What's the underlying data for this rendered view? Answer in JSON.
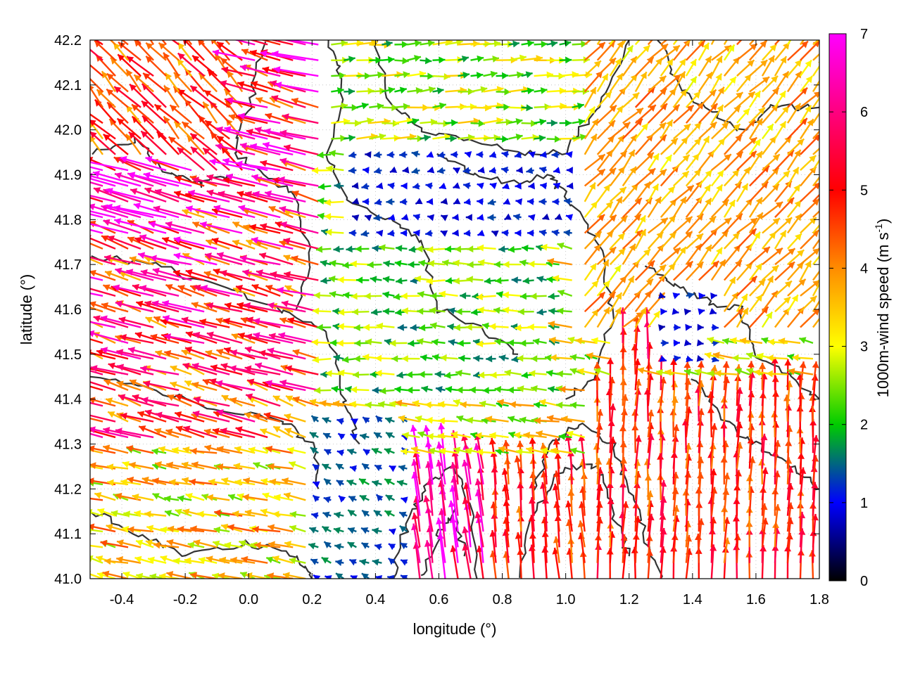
{
  "chart_data": {
    "type": "quiver",
    "xlabel": "longitude (°)",
    "ylabel": "latitude (°)",
    "xlim": [
      -0.5,
      1.8
    ],
    "ylim": [
      41.0,
      42.2
    ],
    "x_ticks": [
      "-0.4",
      "-0.2",
      "0.0",
      "0.2",
      "0.4",
      "0.6",
      "0.8",
      "1.0",
      "1.2",
      "1.4",
      "1.6",
      "1.8"
    ],
    "y_ticks": [
      "41.0",
      "41.1",
      "41.2",
      "41.3",
      "41.4",
      "41.5",
      "41.6",
      "41.7",
      "41.8",
      "41.9",
      "42.0",
      "42.1",
      "42.2"
    ],
    "grid": "dotted",
    "colorbar": {
      "label_prefix": "1000m-wind speed (m s",
      "label_exp": "-1",
      "label_suffix": ")",
      "range": [
        0,
        7
      ],
      "ticks": [
        "0",
        "1",
        "2",
        "3",
        "4",
        "5",
        "6",
        "7"
      ],
      "colors": [
        "#000000",
        "#0000ff",
        "#00cc00",
        "#ffff00",
        "#ff8c00",
        "#ff0000",
        "#ff00ff"
      ]
    },
    "overlay": "terrain contour lines (dark gray)",
    "arrow_regions": [
      {
        "area": "west lowlands (lon -0.5 to 0.2, lat 41.3 to 41.9)",
        "direction": "from east-southeast",
        "speed": 5
      },
      {
        "area": "northwest (lon -0.5 to 0.0, lat 41.9 to 42.2)",
        "direction": "from south-east",
        "speed": 4.5
      },
      {
        "area": "far northwest high winds (lon -0.45 to -0.2, lat 41.7 to 41.9)",
        "direction": "from east-southeast",
        "speed": 6.5
      },
      {
        "area": "southwest (lon -0.5 to 0.2, lat 41.0 to 41.3)",
        "direction": "from east",
        "speed": 3.3
      },
      {
        "area": "central (lon 0.3 to 0.9, lat 41.4 to 41.9)",
        "direction": "from east",
        "speed": 2.3
      },
      {
        "area": "north-central (lon 0.3 to 1.0, lat 42.0 to 42.2)",
        "direction": "from west",
        "speed": 2.5
      },
      {
        "area": "south-central mountains (lon 0.5 to 0.7, lat 41.0 to 41.2)",
        "direction": "from south",
        "speed": 6.5
      },
      {
        "area": "southeast (lon 1.1 to 1.8, lat 41.0 to 41.4)",
        "direction": "from south",
        "speed": 4.8
      },
      {
        "area": "east (lon 1.2 to 1.8, lat 41.4 to 42.0)",
        "direction": "from south-west",
        "speed": 3.8
      },
      {
        "area": "calm zone (lon 1.3 to 1.5, lat 41.5 to 41.6)",
        "direction": "from west",
        "speed": 1.0
      }
    ]
  }
}
